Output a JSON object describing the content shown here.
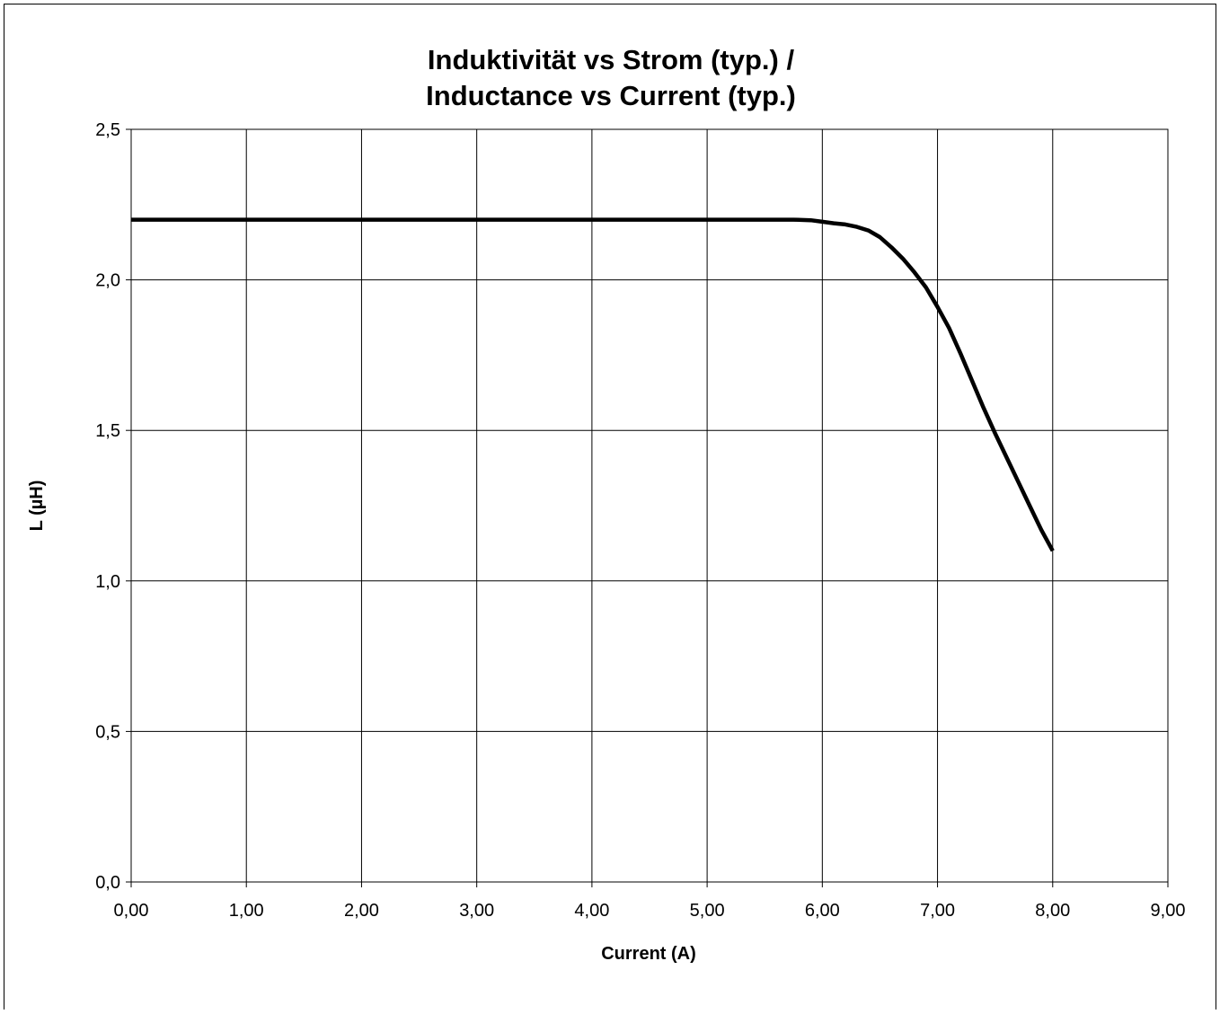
{
  "chart_data": {
    "type": "line",
    "title_line1": "Induktivität vs Strom (typ.) /",
    "title_line2": "Inductance vs Current (typ.)",
    "xlabel": "Current (A)",
    "ylabel": "L (µH)",
    "xlim": [
      0,
      9
    ],
    "ylim": [
      0,
      2.5
    ],
    "grid": true,
    "legend": "none",
    "line_color": "#000000",
    "x_ticks": [
      {
        "value": 0,
        "label": "0,00"
      },
      {
        "value": 1,
        "label": "1,00"
      },
      {
        "value": 2,
        "label": "2,00"
      },
      {
        "value": 3,
        "label": "3,00"
      },
      {
        "value": 4,
        "label": "4,00"
      },
      {
        "value": 5,
        "label": "5,00"
      },
      {
        "value": 6,
        "label": "6,00"
      },
      {
        "value": 7,
        "label": "7,00"
      },
      {
        "value": 8,
        "label": "8,00"
      },
      {
        "value": 9,
        "label": "9,00"
      }
    ],
    "y_ticks": [
      {
        "value": 0,
        "label": "0,0"
      },
      {
        "value": 0.5,
        "label": "0,5"
      },
      {
        "value": 1.0,
        "label": "1,0"
      },
      {
        "value": 1.5,
        "label": "1,5"
      },
      {
        "value": 2.0,
        "label": "2,0"
      },
      {
        "value": 2.5,
        "label": "2,5"
      }
    ],
    "series": [
      {
        "x": [
          0,
          1,
          2,
          3,
          4,
          5,
          5.5,
          5.75,
          5.9,
          6.0,
          6.1,
          6.2,
          6.3,
          6.4,
          6.5,
          6.6,
          6.7,
          6.8,
          6.9,
          7.0,
          7.1,
          7.2,
          7.3,
          7.4,
          7.5,
          7.6,
          7.7,
          7.8,
          7.9,
          8.0
        ],
        "y": [
          2.2,
          2.2,
          2.2,
          2.2,
          2.2,
          2.2,
          2.2,
          2.2,
          2.198,
          2.193,
          2.188,
          2.184,
          2.176,
          2.164,
          2.142,
          2.108,
          2.07,
          2.025,
          1.975,
          1.91,
          1.84,
          1.755,
          1.665,
          1.575,
          1.49,
          1.41,
          1.33,
          1.25,
          1.17,
          1.1
        ]
      }
    ]
  }
}
